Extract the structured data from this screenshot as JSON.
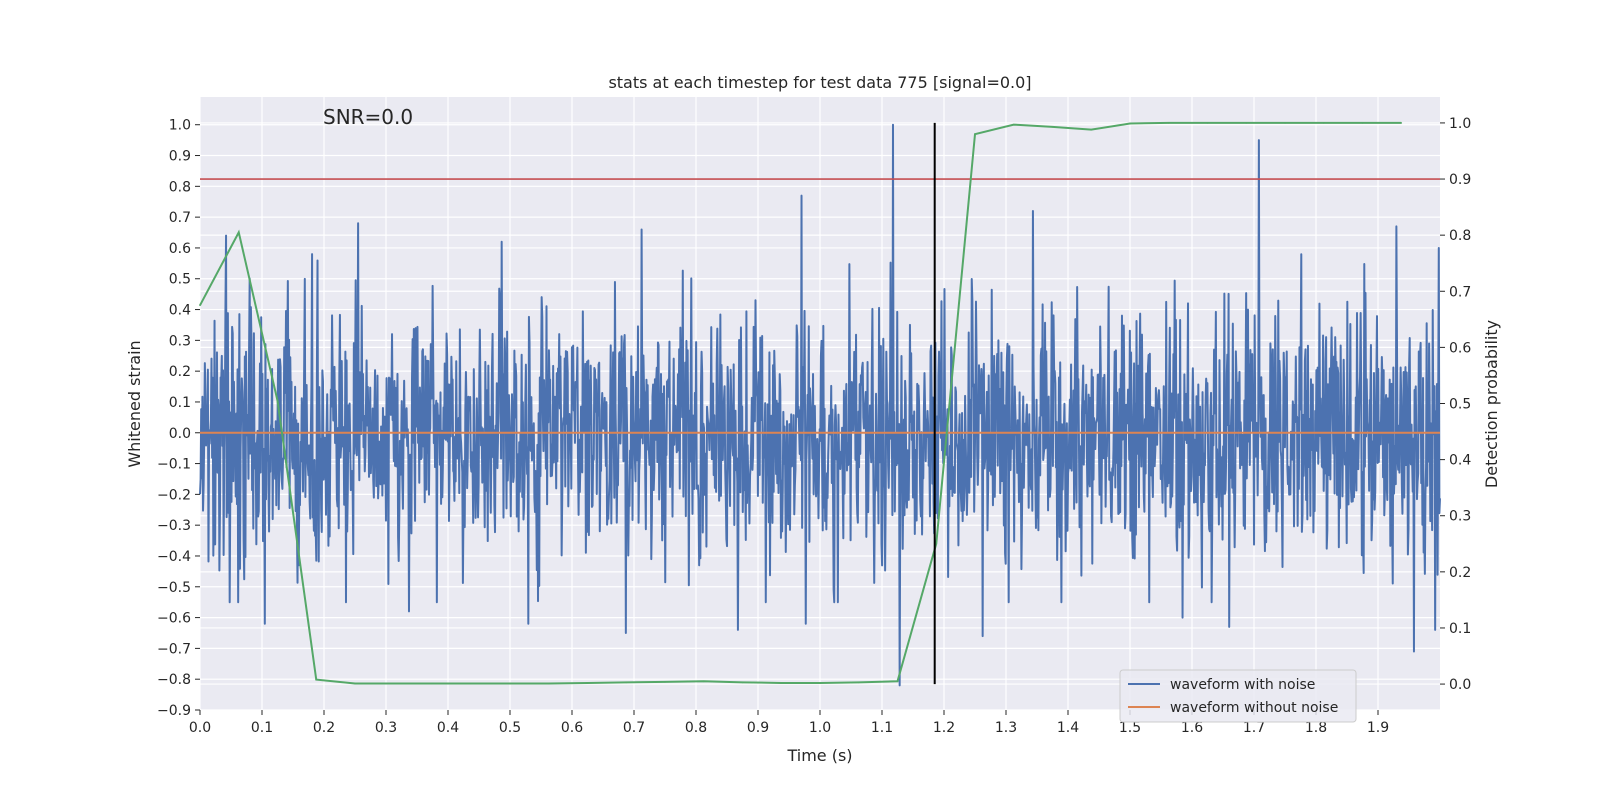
{
  "chart_data": {
    "type": "line",
    "title": "stats at each timestep for test data 775 [signal=0.0]",
    "annotation": "SNR=0.0",
    "xlabel": "Time (s)",
    "ylabel_left": "Whitened strain",
    "ylabel_right": "Detection probability",
    "xlim": [
      0.0,
      2.0
    ],
    "ylim_left": [
      -0.9,
      1.09
    ],
    "ylim_right": [
      -0.0462,
      1.0462
    ],
    "x_ticks": [
      0.0,
      0.1,
      0.2,
      0.3,
      0.4,
      0.5,
      0.6,
      0.7,
      0.8,
      0.9,
      1.0,
      1.1,
      1.2,
      1.3,
      1.4,
      1.5,
      1.6,
      1.7,
      1.8,
      1.9
    ],
    "x_tick_labels": [
      "0.0",
      "0.1",
      "0.2",
      "0.3",
      "0.4",
      "0.5",
      "0.6",
      "0.7",
      "0.8",
      "0.9",
      "1.0",
      "1.1",
      "1.2",
      "1.3",
      "1.4",
      "1.5",
      "1.6",
      "1.7",
      "1.8",
      "1.9"
    ],
    "y_left_ticks": [
      1.0,
      0.9,
      0.8,
      0.7,
      0.6,
      0.5,
      0.4,
      0.3,
      0.2,
      0.1,
      0.0,
      -0.1,
      -0.2,
      -0.3,
      -0.4,
      -0.5,
      -0.6,
      -0.7,
      -0.8,
      -0.9
    ],
    "y_left_tick_labels": [
      "1.0",
      "0.9",
      "0.8",
      "0.7",
      "0.6",
      "0.5",
      "0.4",
      "0.3",
      "0.2",
      "0.1",
      "0.0",
      "−0.1",
      "−0.2",
      "−0.3",
      "−0.4",
      "−0.5",
      "−0.6",
      "−0.7",
      "−0.8",
      "−0.9"
    ],
    "y_right_ticks": [
      1.0,
      0.9,
      0.8,
      0.7,
      0.6,
      0.5,
      0.4,
      0.3,
      0.2,
      0.1,
      0.0
    ],
    "y_right_tick_labels": [
      "1.0",
      "0.9",
      "0.8",
      "0.7",
      "0.6",
      "0.5",
      "0.4",
      "0.3",
      "0.2",
      "0.1",
      "0.0"
    ],
    "threshold": {
      "axis": "right",
      "value": 0.9,
      "color": "#c44e52"
    },
    "event_marker": {
      "x": 1.185,
      "y_range": [
        0.0,
        1.0
      ],
      "axis": "right",
      "color": "#000000"
    },
    "noise_spikes": [
      {
        "x": 0.042,
        "y": 0.64
      },
      {
        "x": 0.255,
        "y": 0.68
      },
      {
        "x": 0.487,
        "y": 0.62
      },
      {
        "x": 0.712,
        "y": 0.66
      },
      {
        "x": 0.97,
        "y": 0.77
      },
      {
        "x": 1.118,
        "y": 1.0
      },
      {
        "x": 1.128,
        "y": -0.82
      },
      {
        "x": 1.343,
        "y": 0.72
      },
      {
        "x": 1.708,
        "y": 0.95
      },
      {
        "x": 1.93,
        "y": 0.67
      },
      {
        "x": 1.958,
        "y": -0.71
      },
      {
        "x": 1.262,
        "y": -0.66
      },
      {
        "x": 0.687,
        "y": -0.65
      },
      {
        "x": 0.105,
        "y": -0.62
      },
      {
        "x": 0.337,
        "y": -0.58
      },
      {
        "x": 0.53,
        "y": -0.62
      },
      {
        "x": 0.868,
        "y": -0.64
      },
      {
        "x": 0.977,
        "y": -0.62
      },
      {
        "x": 1.585,
        "y": -0.6
      },
      {
        "x": 1.66,
        "y": -0.63
      },
      {
        "x": 1.992,
        "y": -0.64
      },
      {
        "x": 1.998,
        "y": 0.6
      }
    ],
    "series": [
      {
        "name": "waveform with noise",
        "color": "#4c72b0",
        "axis": "left",
        "kind": "noise",
        "n_samples": 2048,
        "amplitude_std": 0.2,
        "seed": 775
      },
      {
        "name": "waveform without noise",
        "color": "#dd8452",
        "axis": "left",
        "x": [
          0.0,
          2.0
        ],
        "y": [
          0.0,
          0.0
        ]
      },
      {
        "name": "detection probability",
        "color": "#55a868",
        "axis": "right",
        "in_legend": false,
        "x": [
          0.0,
          0.0625,
          0.125,
          0.1875,
          0.25,
          0.3125,
          0.375,
          0.4375,
          0.5,
          0.5625,
          0.625,
          0.6875,
          0.75,
          0.8125,
          0.875,
          0.9375,
          1.0,
          1.0625,
          1.125,
          1.1875,
          1.25,
          1.3125,
          1.375,
          1.4375,
          1.5,
          1.5625,
          1.625,
          1.6875,
          1.75,
          1.8125,
          1.875,
          1.9375
        ],
        "y": [
          0.675,
          0.805,
          0.505,
          0.008,
          0.001,
          0.001,
          0.001,
          0.001,
          0.001,
          0.001,
          0.002,
          0.003,
          0.004,
          0.005,
          0.003,
          0.002,
          0.002,
          0.003,
          0.005,
          0.25,
          0.98,
          0.997,
          0.993,
          0.988,
          0.999,
          1.0,
          1.0,
          1.0,
          1.0,
          1.0,
          1.0,
          1.0
        ]
      }
    ],
    "legend": {
      "location": "lower-right",
      "entries": [
        {
          "label": "waveform with noise",
          "color": "#4c72b0"
        },
        {
          "label": "waveform without noise",
          "color": "#dd8452"
        }
      ]
    },
    "style": {
      "plot_background": "#eaeaf2",
      "grid_color": "#ffffff"
    }
  }
}
